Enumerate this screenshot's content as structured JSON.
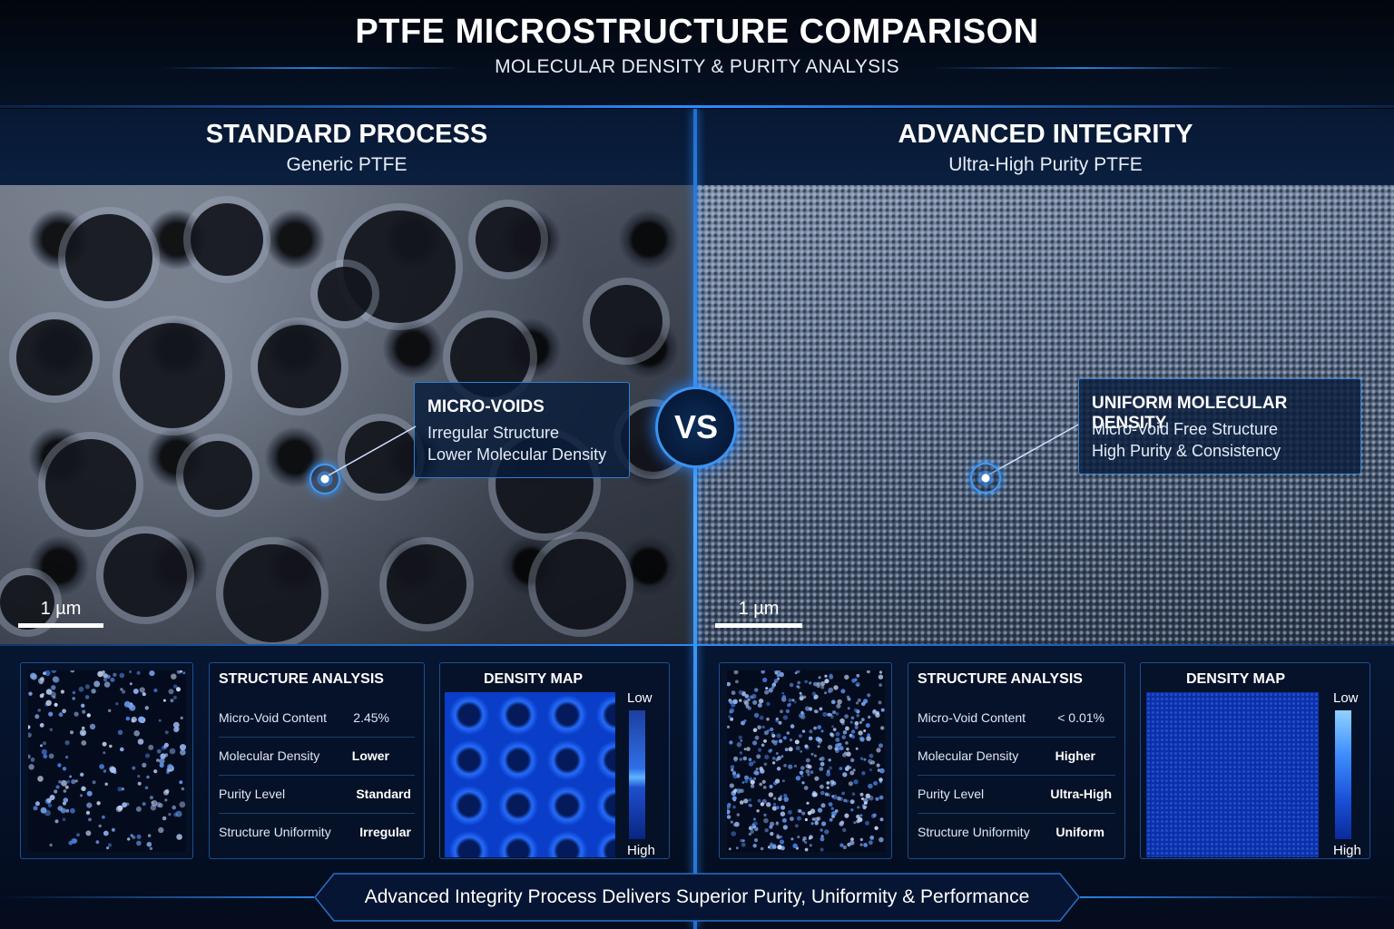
{
  "header": {
    "title": "PTFE MICROSTRUCTURE COMPARISON",
    "subtitle": "MOLECULAR DENSITY & PURITY ANALYSIS"
  },
  "vs_label": "VS",
  "left": {
    "title": "STANDARD PROCESS",
    "subtitle": "Generic PTFE",
    "callout": {
      "title": "MICRO-VOIDS",
      "lines": [
        "Irregular Structure",
        "Lower Molecular Density"
      ]
    },
    "scale_label": "1 µm",
    "structure_analysis": {
      "title": "STRUCTURE ANALYSIS",
      "rows": [
        {
          "label": "Micro-Void Content",
          "value": "2.45%"
        },
        {
          "label": "Molecular Density",
          "value": "Lower"
        },
        {
          "label": "Purity Level",
          "value": "Standard"
        },
        {
          "label": "Structure Uniformity",
          "value": "Irregular"
        }
      ]
    },
    "density_map": {
      "title": "DENSITY MAP",
      "legend_low": "Low",
      "legend_high": "High"
    }
  },
  "right": {
    "title": "ADVANCED INTEGRITY",
    "subtitle": "Ultra-High Purity PTFE",
    "callout": {
      "title": "UNIFORM MOLECULAR DENSITY",
      "lines": [
        "Micro-Void Free Structure",
        "High Purity & Consistency"
      ]
    },
    "scale_label": "1 µm",
    "structure_analysis": {
      "title": "STRUCTURE ANALYSIS",
      "rows": [
        {
          "label": "Micro-Void Content",
          "value": "< 0.01%"
        },
        {
          "label": "Molecular Density",
          "value": "Higher"
        },
        {
          "label": "Purity Level",
          "value": "Ultra-High"
        },
        {
          "label": "Structure Uniformity",
          "value": "Uniform"
        }
      ]
    },
    "density_map": {
      "title": "DENSITY MAP",
      "legend_low": "Low",
      "legend_high": "High"
    }
  },
  "footer": {
    "banner": "Advanced Integrity Process Delivers Superior Purity, Uniformity & Performance"
  },
  "colors": {
    "accent": "#2f8cff",
    "panel_bg": "#061632",
    "border": "#1d4f8f"
  }
}
